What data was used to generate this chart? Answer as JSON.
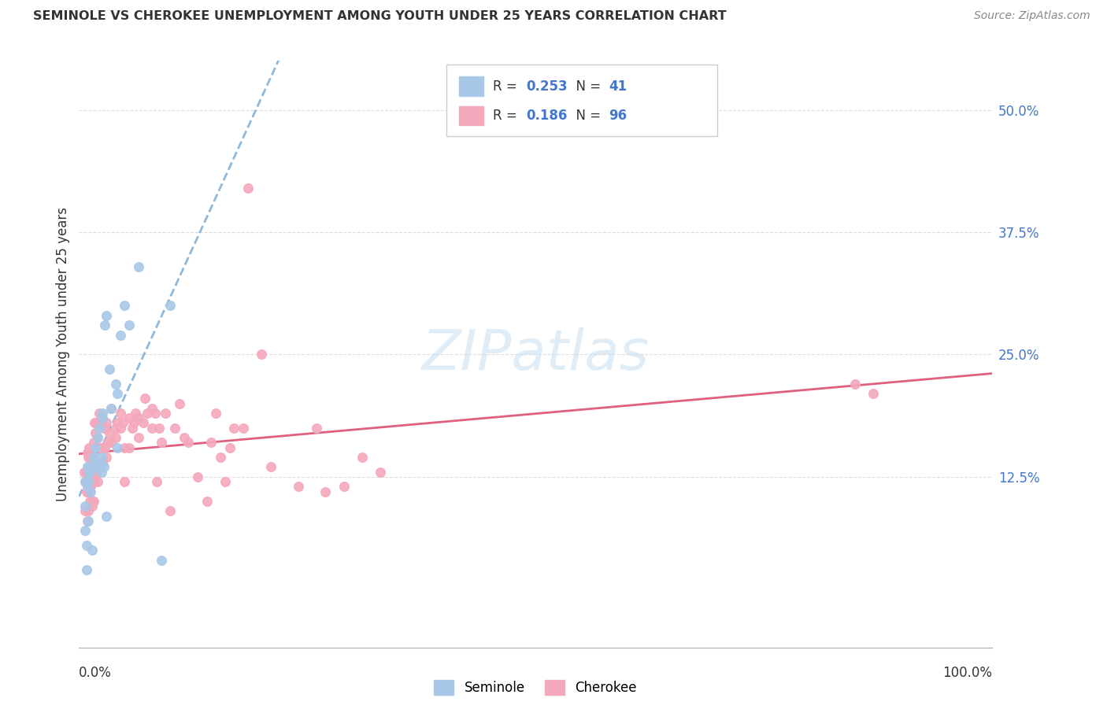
{
  "title": "SEMINOLE VS CHEROKEE UNEMPLOYMENT AMONG YOUTH UNDER 25 YEARS CORRELATION CHART",
  "source": "Source: ZipAtlas.com",
  "ylabel": "Unemployment Among Youth under 25 years",
  "ytick_labels": [
    "12.5%",
    "25.0%",
    "37.5%",
    "50.0%"
  ],
  "ytick_values": [
    12.5,
    25.0,
    37.5,
    50.0
  ],
  "xlim": [
    0,
    100
  ],
  "ylim": [
    -5,
    55
  ],
  "watermark": "ZIPatlas",
  "seminole_color": "#a8c8e8",
  "cherokee_color": "#f4a8bc",
  "trendline_seminole_color": "#90b8d8",
  "trendline_cherokee_color": "#e06080",
  "seminole_x": [
    0.7,
    0.7,
    0.7,
    0.8,
    0.8,
    0.9,
    0.9,
    1.0,
    1.0,
    1.1,
    1.2,
    1.3,
    1.3,
    1.4,
    1.6,
    1.6,
    1.7,
    1.8,
    2.0,
    2.0,
    2.2,
    2.2,
    2.5,
    2.5,
    2.6,
    2.6,
    2.7,
    2.8,
    3.0,
    3.0,
    3.3,
    3.5,
    4.0,
    4.2,
    4.2,
    4.5,
    5.0,
    5.5,
    6.5,
    9.0,
    10.0
  ],
  "seminole_y": [
    7.0,
    9.5,
    12.0,
    3.0,
    5.5,
    11.5,
    13.5,
    8.0,
    12.0,
    13.0,
    13.0,
    11.0,
    13.5,
    5.0,
    13.5,
    14.5,
    14.0,
    15.5,
    14.0,
    16.5,
    13.5,
    17.5,
    14.5,
    13.0,
    19.0,
    18.5,
    13.5,
    28.0,
    29.0,
    8.5,
    23.5,
    19.5,
    22.0,
    21.0,
    15.5,
    27.0,
    30.0,
    28.0,
    34.0,
    4.0,
    30.0
  ],
  "cherokee_x": [
    0.6,
    0.7,
    0.7,
    0.8,
    0.8,
    0.9,
    0.9,
    0.9,
    1.0,
    1.0,
    1.0,
    1.1,
    1.1,
    1.2,
    1.2,
    1.3,
    1.3,
    1.4,
    1.4,
    1.5,
    1.5,
    1.6,
    1.6,
    1.7,
    1.7,
    1.8,
    1.8,
    1.9,
    1.9,
    2.0,
    2.0,
    2.1,
    2.2,
    2.2,
    2.3,
    2.5,
    2.5,
    2.6,
    2.7,
    2.8,
    3.0,
    3.0,
    3.2,
    3.3,
    3.5,
    3.5,
    4.0,
    4.0,
    4.2,
    4.5,
    4.5,
    4.8,
    5.0,
    5.0,
    5.5,
    5.5,
    5.8,
    6.0,
    6.2,
    6.5,
    6.5,
    7.0,
    7.2,
    7.5,
    8.0,
    8.0,
    8.3,
    8.5,
    8.8,
    9.0,
    9.5,
    10.0,
    10.5,
    11.0,
    11.5,
    12.0,
    13.0,
    14.0,
    14.5,
    15.0,
    15.5,
    16.0,
    16.5,
    17.0,
    18.0,
    18.5,
    20.0,
    21.0,
    24.0,
    26.0,
    27.0,
    29.0,
    31.0,
    33.0,
    85.0,
    87.0
  ],
  "cherokee_y": [
    13.0,
    9.0,
    12.0,
    11.0,
    13.0,
    8.0,
    11.5,
    15.0,
    9.0,
    13.0,
    14.5,
    11.0,
    15.5,
    10.0,
    13.5,
    11.5,
    14.5,
    9.5,
    14.5,
    10.0,
    14.0,
    10.0,
    16.0,
    12.0,
    18.0,
    12.5,
    17.0,
    13.0,
    18.0,
    12.0,
    16.5,
    14.0,
    15.5,
    19.0,
    14.0,
    15.5,
    18.5,
    14.0,
    17.5,
    15.5,
    18.0,
    14.5,
    16.0,
    17.0,
    16.0,
    19.5,
    17.5,
    16.5,
    18.0,
    17.5,
    19.0,
    18.0,
    15.5,
    12.0,
    15.5,
    18.5,
    17.5,
    18.0,
    19.0,
    16.5,
    18.5,
    18.0,
    20.5,
    19.0,
    17.5,
    19.5,
    19.0,
    12.0,
    17.5,
    16.0,
    19.0,
    9.0,
    17.5,
    20.0,
    16.5,
    16.0,
    12.5,
    10.0,
    16.0,
    19.0,
    14.5,
    12.0,
    15.5,
    17.5,
    17.5,
    42.0,
    25.0,
    13.5,
    11.5,
    17.5,
    11.0,
    11.5,
    14.5,
    13.0,
    22.0,
    21.0
  ]
}
